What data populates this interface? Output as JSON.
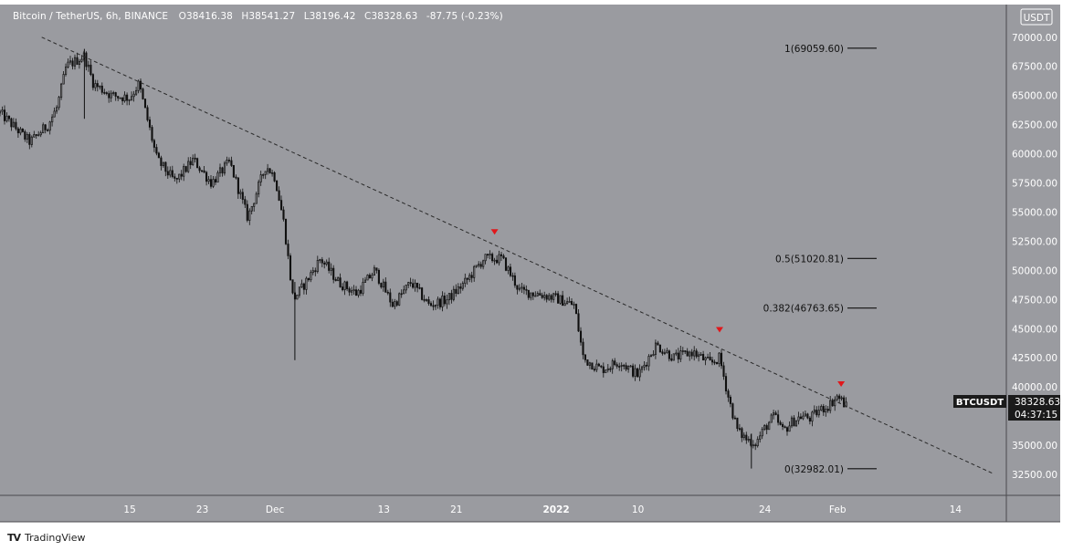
{
  "header": {
    "symbol": "Bitcoin / TetherUS, 6h, BINANCE",
    "open_label": "O",
    "open": "38416.38",
    "high_label": "H",
    "high": "38541.27",
    "low_label": "L",
    "low": "38196.42",
    "close_label": "C",
    "close": "38328.63",
    "change": "-87.75 (-0.23%)"
  },
  "currency_badge": "USDT",
  "price_tag": {
    "symbol": "BTCUSDT",
    "price": "38328.63",
    "countdown": "04:37:15"
  },
  "footer": {
    "brand": "TradingView"
  },
  "colors": {
    "background": "#9a9ba0",
    "candle": "#101010",
    "marker": "#e0171b",
    "tag_bg": "#1b1b1b"
  },
  "chart_data": {
    "type": "candlestick",
    "interval": "6h",
    "price_axis_labels": [
      "32500.00",
      "35000.00",
      "37500.00",
      "40000.00",
      "42500.00",
      "45000.00",
      "47500.00",
      "50000.00",
      "52500.00",
      "55000.00",
      "57500.00",
      "60000.00",
      "62500.00",
      "65000.00",
      "67500.00",
      "70000.00"
    ],
    "ylim": [
      30700,
      72800
    ],
    "time_axis": [
      {
        "label": "15",
        "day": 15
      },
      {
        "label": "23",
        "day": 23
      },
      {
        "label": "Dec",
        "day": 31
      },
      {
        "label": "13",
        "day": 43
      },
      {
        "label": "21",
        "day": 51
      },
      {
        "label": "2022",
        "day": 62
      },
      {
        "label": "10",
        "day": 71
      },
      {
        "label": "24",
        "day": 85
      },
      {
        "label": "Feb",
        "day": 93
      },
      {
        "label": "14",
        "day": 106
      }
    ],
    "xlim": [
      0.7,
      111.6
    ],
    "anchors": [
      [
        0.7,
        63500
      ],
      [
        4,
        61000
      ],
      [
        6,
        62500
      ],
      [
        7,
        64000
      ],
      [
        8,
        67500
      ],
      [
        10,
        68400
      ],
      [
        11,
        66000
      ],
      [
        13,
        65000
      ],
      [
        15,
        64800
      ],
      [
        16,
        66000
      ],
      [
        18,
        59500
      ],
      [
        20,
        57600
      ],
      [
        22,
        59500
      ],
      [
        24,
        57500
      ],
      [
        26,
        59300
      ],
      [
        28,
        54500
      ],
      [
        30,
        59000
      ],
      [
        31,
        58000
      ],
      [
        32,
        54000
      ],
      [
        33,
        47500
      ],
      [
        34,
        48500
      ],
      [
        36,
        51000
      ],
      [
        38,
        49000
      ],
      [
        40,
        48000
      ],
      [
        42,
        50000
      ],
      [
        44,
        47000
      ],
      [
        46,
        49000
      ],
      [
        48,
        47000
      ],
      [
        50,
        47500
      ],
      [
        52,
        49000
      ],
      [
        54,
        51000
      ],
      [
        56,
        51000
      ],
      [
        58,
        48200
      ],
      [
        60,
        48000
      ],
      [
        62,
        47600
      ],
      [
        64,
        47000
      ],
      [
        65,
        42400
      ],
      [
        67,
        41500
      ],
      [
        69,
        42200
      ],
      [
        71,
        41000
      ],
      [
        73,
        43600
      ],
      [
        75,
        42500
      ],
      [
        77,
        43000
      ],
      [
        79,
        42000
      ],
      [
        80,
        42500
      ],
      [
        81,
        39000
      ],
      [
        82,
        36200
      ],
      [
        83,
        35500
      ],
      [
        84,
        35200
      ],
      [
        85,
        36500
      ],
      [
        86,
        37500
      ],
      [
        87,
        36200
      ],
      [
        88,
        37000
      ],
      [
        89,
        37500
      ],
      [
        90,
        37300
      ],
      [
        91,
        38000
      ],
      [
        92,
        38400
      ],
      [
        93,
        39200
      ],
      [
        94,
        38328.63
      ]
    ],
    "trendline": {
      "start": [
        5.3,
        70000
      ],
      "end": [
        110.2,
        32550
      ],
      "style": "dashed"
    },
    "fib_levels": [
      {
        "label": "1(69059.60)",
        "value": 69059.6
      },
      {
        "label": "0.5(51020.81)",
        "value": 51020.81
      },
      {
        "label": "0.382(46763.65)",
        "value": 46763.65
      },
      {
        "label": "0(32982.01)",
        "value": 32982.01
      }
    ],
    "markers": [
      {
        "day": 55.2,
        "value": 53300,
        "shape": "down-triangle"
      },
      {
        "day": 80.0,
        "value": 44900,
        "shape": "down-triangle"
      },
      {
        "day": 93.4,
        "value": 40250,
        "shape": "down-triangle"
      }
    ],
    "last_price": 38328.63
  }
}
